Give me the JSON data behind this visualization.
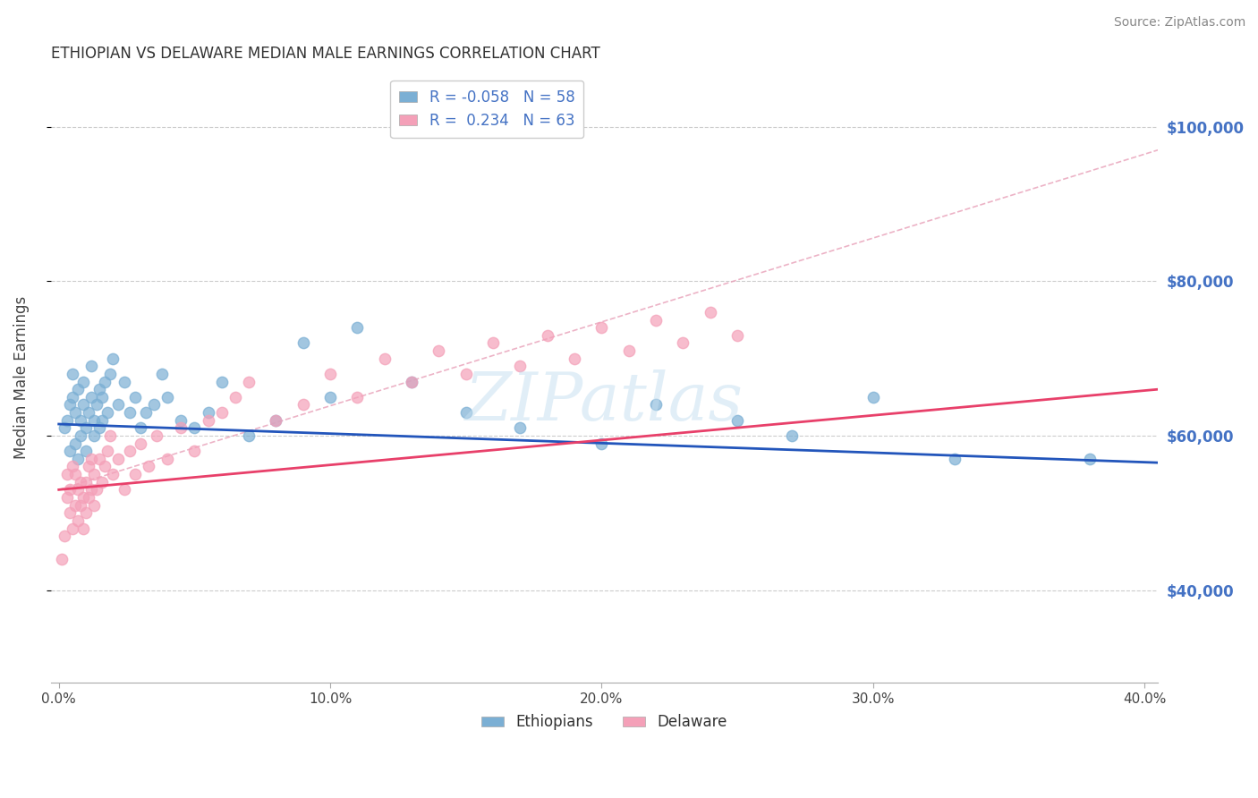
{
  "title": "ETHIOPIAN VS DELAWARE MEDIAN MALE EARNINGS CORRELATION CHART",
  "source": "Source: ZipAtlas.com",
  "ylabel": "Median Male Earnings",
  "xlabel_ticks": [
    "0.0%",
    "10.0%",
    "20.0%",
    "30.0%",
    "40.0%"
  ],
  "xlabel_vals": [
    0.0,
    0.1,
    0.2,
    0.3,
    0.4
  ],
  "ytick_vals": [
    40000,
    60000,
    80000,
    100000
  ],
  "ytick_labels": [
    "$40,000",
    "$60,000",
    "$80,000",
    "$100,000"
  ],
  "ymin": 28000,
  "ymax": 107000,
  "xmin": -0.003,
  "xmax": 0.405,
  "legend_entries": [
    {
      "label": "R = -0.058   N = 58",
      "color": "#aac4e8"
    },
    {
      "label": "R =  0.234   N = 63",
      "color": "#f4b8c8"
    }
  ],
  "legend_bottom": [
    {
      "label": "Ethiopians",
      "color": "#aac4e8"
    },
    {
      "label": "Delaware",
      "color": "#f4b8c8"
    }
  ],
  "title_color": "#333333",
  "source_color": "#888888",
  "axis_label_color": "#444444",
  "right_tick_color": "#4472c4",
  "blue_scatter_color": "#7bafd4",
  "pink_scatter_color": "#f4a0b8",
  "blue_line_color": "#2255bb",
  "pink_line_color": "#e8406a",
  "dashed_line_color": "#e8a0b8",
  "grid_color": "#cccccc",
  "scatter_alpha": 0.7,
  "scatter_size": 80,
  "blue_points_x": [
    0.002,
    0.003,
    0.004,
    0.004,
    0.005,
    0.005,
    0.006,
    0.006,
    0.007,
    0.007,
    0.008,
    0.008,
    0.009,
    0.009,
    0.01,
    0.01,
    0.011,
    0.012,
    0.012,
    0.013,
    0.013,
    0.014,
    0.015,
    0.015,
    0.016,
    0.016,
    0.017,
    0.018,
    0.019,
    0.02,
    0.022,
    0.024,
    0.026,
    0.028,
    0.03,
    0.032,
    0.035,
    0.038,
    0.04,
    0.045,
    0.05,
    0.055,
    0.06,
    0.07,
    0.08,
    0.09,
    0.1,
    0.11,
    0.13,
    0.15,
    0.17,
    0.2,
    0.22,
    0.25,
    0.27,
    0.3,
    0.33,
    0.38
  ],
  "blue_points_y": [
    61000,
    62000,
    58000,
    64000,
    65000,
    68000,
    59000,
    63000,
    57000,
    66000,
    60000,
    62000,
    64000,
    67000,
    61000,
    58000,
    63000,
    69000,
    65000,
    62000,
    60000,
    64000,
    61000,
    66000,
    62000,
    65000,
    67000,
    63000,
    68000,
    70000,
    64000,
    67000,
    63000,
    65000,
    61000,
    63000,
    64000,
    68000,
    65000,
    62000,
    61000,
    63000,
    67000,
    60000,
    62000,
    72000,
    65000,
    74000,
    67000,
    63000,
    61000,
    59000,
    64000,
    62000,
    60000,
    65000,
    57000,
    57000
  ],
  "pink_points_x": [
    0.001,
    0.002,
    0.003,
    0.003,
    0.004,
    0.004,
    0.005,
    0.005,
    0.006,
    0.006,
    0.007,
    0.007,
    0.008,
    0.008,
    0.009,
    0.009,
    0.01,
    0.01,
    0.011,
    0.011,
    0.012,
    0.012,
    0.013,
    0.013,
    0.014,
    0.015,
    0.016,
    0.017,
    0.018,
    0.019,
    0.02,
    0.022,
    0.024,
    0.026,
    0.028,
    0.03,
    0.033,
    0.036,
    0.04,
    0.045,
    0.05,
    0.055,
    0.06,
    0.065,
    0.07,
    0.08,
    0.09,
    0.1,
    0.11,
    0.12,
    0.13,
    0.14,
    0.15,
    0.16,
    0.17,
    0.18,
    0.19,
    0.2,
    0.21,
    0.22,
    0.23,
    0.24,
    0.25
  ],
  "pink_points_y": [
    44000,
    47000,
    52000,
    55000,
    50000,
    53000,
    48000,
    56000,
    51000,
    55000,
    49000,
    53000,
    51000,
    54000,
    48000,
    52000,
    50000,
    54000,
    52000,
    56000,
    53000,
    57000,
    51000,
    55000,
    53000,
    57000,
    54000,
    56000,
    58000,
    60000,
    55000,
    57000,
    53000,
    58000,
    55000,
    59000,
    56000,
    60000,
    57000,
    61000,
    58000,
    62000,
    63000,
    65000,
    67000,
    62000,
    64000,
    68000,
    65000,
    70000,
    67000,
    71000,
    68000,
    72000,
    69000,
    73000,
    70000,
    74000,
    71000,
    75000,
    72000,
    76000,
    73000
  ],
  "blue_line_x": [
    0.0,
    0.405
  ],
  "blue_line_y": [
    61500,
    56500
  ],
  "pink_line_x": [
    0.0,
    0.405
  ],
  "pink_line_y": [
    53000,
    66000
  ],
  "dashed_line_x": [
    0.0,
    0.405
  ],
  "dashed_line_y": [
    53000,
    97000
  ],
  "watermark": "ZIPatlas"
}
